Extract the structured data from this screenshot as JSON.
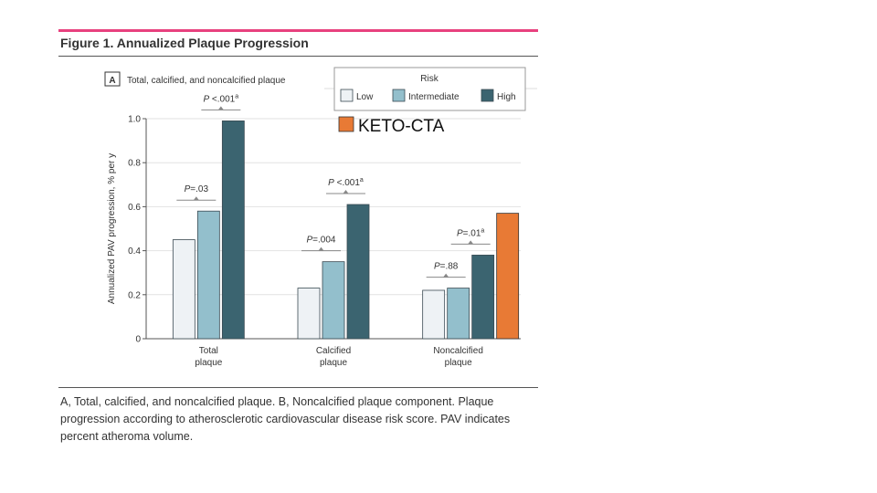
{
  "figure": {
    "title": "Figure 1. Annualized Plaque Progression",
    "caption": "A, Total, calcified, and noncalcified plaque. B, Noncalcified plaque component. Plaque progression according to atherosclerotic cardiovascular disease risk score. PAV indicates percent atheroma volume.",
    "accent_color": "#e8417e"
  },
  "chart_data": {
    "type": "bar",
    "panel_letter": "A",
    "panel_title": "Total, calcified, and noncalcified plaque",
    "ylabel": "Annualized PAV progression, % per y",
    "ylim": [
      0,
      1.0
    ],
    "yticks": [
      "0",
      "0.2",
      "0.4",
      "0.6",
      "0.8",
      "1.0"
    ],
    "grid": true,
    "legend_title": "Risk",
    "legend_position": "top-right",
    "categories": [
      "Total\nplaque",
      "Calcified\nplaque",
      "Noncalcified\nplaque"
    ],
    "series": [
      {
        "name": "Low",
        "color": "#eef2f5",
        "values": [
          0.45,
          0.23,
          0.22
        ]
      },
      {
        "name": "Intermediate",
        "color": "#93bfcc",
        "values": [
          0.58,
          0.35,
          0.23
        ]
      },
      {
        "name": "High",
        "color": "#3b6470",
        "values": [
          0.99,
          0.61,
          0.38
        ]
      }
    ],
    "extra_series": {
      "name": "KETO-CTA",
      "color": "#e87a35",
      "category_index": 2,
      "value": 0.57
    },
    "annotations": [
      {
        "category_index": 0,
        "span": [
          "Low",
          "Intermediate"
        ],
        "p": "P",
        "text": "=.03",
        "sup": ""
      },
      {
        "category_index": 0,
        "span": [
          "Intermediate",
          "High"
        ],
        "p": "P",
        "text": " <.001",
        "sup": "a"
      },
      {
        "category_index": 1,
        "span": [
          "Low",
          "Intermediate"
        ],
        "p": "P",
        "text": "=.004",
        "sup": ""
      },
      {
        "category_index": 1,
        "span": [
          "Intermediate",
          "High"
        ],
        "p": "P",
        "text": " <.001",
        "sup": "a"
      },
      {
        "category_index": 2,
        "span": [
          "Low",
          "Intermediate"
        ],
        "p": "P",
        "text": "=.88",
        "sup": ""
      },
      {
        "category_index": 2,
        "span": [
          "Intermediate",
          "High"
        ],
        "p": "P",
        "text": "=.01",
        "sup": "a"
      }
    ]
  }
}
